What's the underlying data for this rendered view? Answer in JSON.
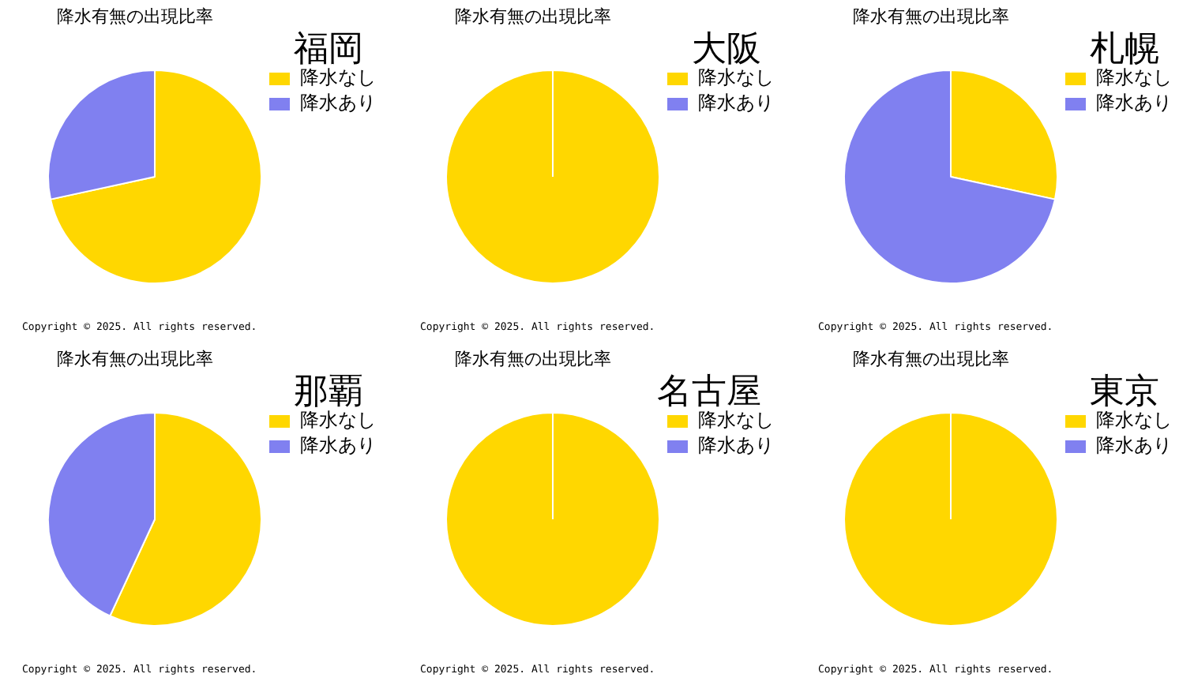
{
  "chart_data": [
    {
      "type": "pie",
      "title": "福岡",
      "subtitle": "降水有無の出現比率",
      "categories": [
        "降水なし",
        "降水あり"
      ],
      "values": [
        71.6,
        28.4
      ],
      "colors": [
        "#ffd700",
        "#8080f0"
      ],
      "legend": "right",
      "annotations": [
        "Copyright ©  2025. All rights reserved."
      ]
    },
    {
      "type": "pie",
      "title": "大阪",
      "subtitle": "降水有無の出現比率",
      "categories": [
        "降水なし",
        "降水あり"
      ],
      "values": [
        100,
        0
      ],
      "colors": [
        "#ffd700",
        "#8080f0"
      ],
      "legend": "right",
      "annotations": [
        "Copyright ©  2025. All rights reserved."
      ]
    },
    {
      "type": "pie",
      "title": "札幌",
      "subtitle": "降水有無の出現比率",
      "categories": [
        "降水なし",
        "降水あり"
      ],
      "values": [
        28.4,
        71.6
      ],
      "colors": [
        "#ffd700",
        "#8080f0"
      ],
      "legend": "right",
      "annotations": [
        "Copyright ©  2025. All rights reserved."
      ]
    },
    {
      "type": "pie",
      "title": "那覇",
      "subtitle": "降水有無の出現比率",
      "categories": [
        "降水なし",
        "降水あり"
      ],
      "values": [
        56.9,
        43.1
      ],
      "colors": [
        "#ffd700",
        "#8080f0"
      ],
      "legend": "right",
      "annotations": [
        "Copyright ©  2025. All rights reserved."
      ]
    },
    {
      "type": "pie",
      "title": "名古屋",
      "subtitle": "降水有無の出現比率",
      "categories": [
        "降水なし",
        "降水あり"
      ],
      "values": [
        100,
        0
      ],
      "colors": [
        "#ffd700",
        "#8080f0"
      ],
      "legend": "right",
      "annotations": [
        "Copyright ©  2025. All rights reserved."
      ]
    },
    {
      "type": "pie",
      "title": "東京",
      "subtitle": "降水有無の出現比率",
      "categories": [
        "降水なし",
        "降水あり"
      ],
      "values": [
        100,
        0
      ],
      "colors": [
        "#ffd700",
        "#8080f0"
      ],
      "legend": "right",
      "annotations": [
        "Copyright ©  2025. All rights reserved."
      ]
    }
  ]
}
